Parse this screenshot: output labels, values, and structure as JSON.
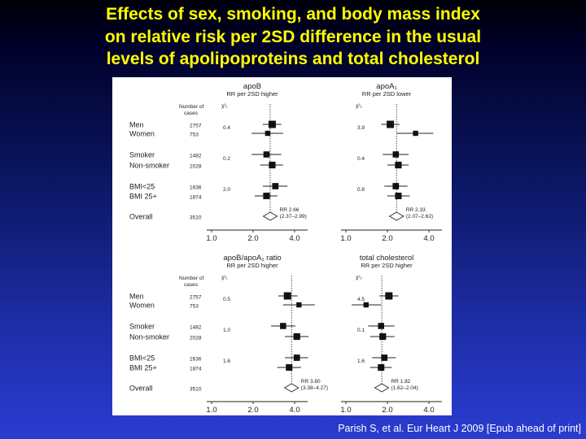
{
  "title": {
    "lines": [
      "Effects of sex, smoking, and body mass index",
      "on relative risk per 2SD difference in the usual",
      "levels of apolipoproteins and total cholesterol"
    ]
  },
  "citation": "Parish S, et al. Eur Heart J 2009 [Epub ahead of print]",
  "table": {
    "header_cases": [
      "Number of",
      "cases"
    ],
    "chi_label": "χ²₁",
    "rows": [
      {
        "label": "Men",
        "cases": "2757"
      },
      {
        "label": "Women",
        "cases": "753"
      },
      {
        "label": "Smoker",
        "cases": "1482"
      },
      {
        "label": "Non-smoker",
        "cases": "2028"
      },
      {
        "label": "BMI<25",
        "cases": "1636"
      },
      {
        "label": "BMI 25+",
        "cases": "1874"
      },
      {
        "label": "Overall",
        "cases": "3510"
      }
    ]
  },
  "colors": {
    "title": "#ffff00",
    "figure_bg": "#ffffff",
    "ink": "#222222"
  },
  "chart_data": [
    {
      "type": "forest",
      "title": "apoB",
      "subtitle": "RR per 2SD higher",
      "scale": "log",
      "xlim": [
        1.0,
        5.0
      ],
      "ticks": [
        1.0,
        2.0,
        4.0
      ],
      "tick_labels": [
        "1.0",
        "2.0",
        "4.0"
      ],
      "reference": 2.66,
      "chi": [
        "0.4",
        "0.2",
        "2.0"
      ],
      "rows": [
        {
          "label": "Men",
          "rr": 2.75,
          "lo": 2.35,
          "hi": 3.2,
          "weight": 2757
        },
        {
          "label": "Women",
          "rr": 2.55,
          "lo": 1.95,
          "hi": 3.3,
          "weight": 753
        },
        {
          "label": "Smoker",
          "rr": 2.5,
          "lo": 1.95,
          "hi": 3.2,
          "weight": 1482
        },
        {
          "label": "Non-smoker",
          "rr": 2.75,
          "lo": 2.25,
          "hi": 3.3,
          "weight": 2028
        },
        {
          "label": "BMI<25",
          "rr": 2.9,
          "lo": 2.35,
          "hi": 3.55,
          "weight": 1636
        },
        {
          "label": "BMI 25+",
          "rr": 2.5,
          "lo": 2.05,
          "hi": 3.0,
          "weight": 1874
        }
      ],
      "overall": {
        "rr": 2.66,
        "lo": 2.37,
        "hi": 2.99,
        "label": "RR 2.66",
        "ci": "(2.37–2.99)"
      }
    },
    {
      "type": "forest",
      "title": "apoA₁",
      "subtitle": "RR per 2SD lower",
      "scale": "log",
      "xlim": [
        1.0,
        5.0
      ],
      "ticks": [
        1.0,
        2.0,
        4.0
      ],
      "tick_labels": [
        "1.0",
        "2.0",
        "4.0"
      ],
      "reference": 2.33,
      "chi": [
        "3.9",
        "0.4",
        "0.8"
      ],
      "rows": [
        {
          "label": "Men",
          "rr": 2.1,
          "lo": 1.8,
          "hi": 2.45,
          "weight": 2757
        },
        {
          "label": "Women",
          "rr": 3.2,
          "lo": 2.35,
          "hi": 4.3,
          "weight": 753
        },
        {
          "label": "Smoker",
          "rr": 2.3,
          "lo": 1.85,
          "hi": 2.85,
          "weight": 1482
        },
        {
          "label": "Non-smoker",
          "rr": 2.4,
          "lo": 2.0,
          "hi": 2.85,
          "weight": 2028
        },
        {
          "label": "BMI<25",
          "rr": 2.3,
          "lo": 1.9,
          "hi": 2.8,
          "weight": 1636
        },
        {
          "label": "BMI 25+",
          "rr": 2.4,
          "lo": 2.0,
          "hi": 2.9,
          "weight": 1874
        }
      ],
      "overall": {
        "rr": 2.33,
        "lo": 2.07,
        "hi": 2.62,
        "label": "RR 2.33",
        "ci": "(2.07–2.62)"
      }
    },
    {
      "type": "forest",
      "title": "apoB/apoA₁ ratio",
      "subtitle": "RR per 2SD higher",
      "scale": "log",
      "xlim": [
        1.0,
        5.0
      ],
      "ticks": [
        1.0,
        2.0,
        4.0
      ],
      "tick_labels": [
        "1.0",
        "2.0",
        "4.0"
      ],
      "reference": 3.8,
      "chi": [
        "0.5",
        "1.0",
        "1.6"
      ],
      "rows": [
        {
          "label": "Men",
          "rr": 3.55,
          "lo": 3.05,
          "hi": 4.2,
          "weight": 2757
        },
        {
          "label": "Women",
          "rr": 4.3,
          "lo": 3.3,
          "hi": 5.6,
          "weight": 753
        },
        {
          "label": "Smoker",
          "rr": 3.3,
          "lo": 2.7,
          "hi": 4.05,
          "weight": 1482
        },
        {
          "label": "Non-smoker",
          "rr": 4.15,
          "lo": 3.4,
          "hi": 5.05,
          "weight": 2028
        },
        {
          "label": "BMI<25",
          "rr": 4.15,
          "lo": 3.4,
          "hi": 5.0,
          "weight": 1636
        },
        {
          "label": "BMI 25+",
          "rr": 3.65,
          "lo": 3.0,
          "hi": 4.45,
          "weight": 1874
        }
      ],
      "overall": {
        "rr": 3.8,
        "lo": 3.38,
        "hi": 4.27,
        "label": "RR 3.80",
        "ci": "(3.38–4.27)"
      }
    },
    {
      "type": "forest",
      "title": "total cholesterol",
      "subtitle": "RR per 2SD higher",
      "scale": "log",
      "xlim": [
        1.0,
        5.0
      ],
      "ticks": [
        1.0,
        2.0,
        4.0
      ],
      "tick_labels": [
        "1.0",
        "2.0",
        "4.0"
      ],
      "reference": 1.82,
      "chi": [
        "4.5",
        "0.1",
        "1.6"
      ],
      "rows": [
        {
          "label": "Men",
          "rr": 2.05,
          "lo": 1.75,
          "hi": 2.4,
          "weight": 2757
        },
        {
          "label": "Women",
          "rr": 1.4,
          "lo": 1.1,
          "hi": 1.8,
          "weight": 753
        },
        {
          "label": "Smoker",
          "rr": 1.8,
          "lo": 1.45,
          "hi": 2.25,
          "weight": 1482
        },
        {
          "label": "Non-smoker",
          "rr": 1.85,
          "lo": 1.5,
          "hi": 2.25,
          "weight": 2028
        },
        {
          "label": "BMI<25",
          "rr": 1.9,
          "lo": 1.55,
          "hi": 2.3,
          "weight": 1636
        },
        {
          "label": "BMI 25+",
          "rr": 1.8,
          "lo": 1.5,
          "hi": 2.15,
          "weight": 1874
        }
      ],
      "overall": {
        "rr": 1.82,
        "lo": 1.62,
        "hi": 2.04,
        "label": "RR 1.82",
        "ci": "(1.62–2.04)"
      }
    }
  ]
}
